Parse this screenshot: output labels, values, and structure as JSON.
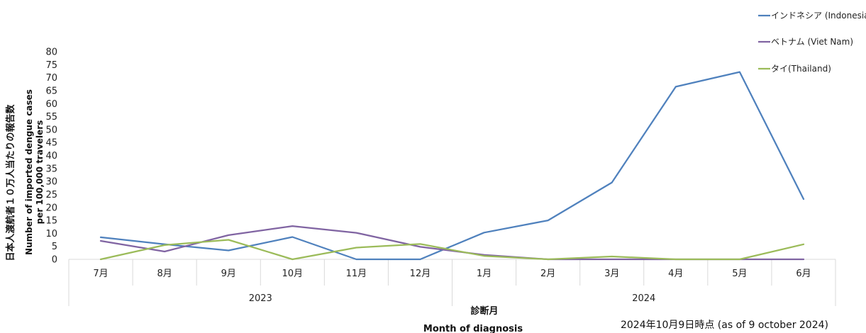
{
  "chart_data": {
    "type": "line",
    "categories": [
      "7月",
      "8月",
      "9月",
      "10月",
      "11月",
      "12月",
      "1月",
      "2月",
      "3月",
      "4月",
      "5月",
      "6月"
    ],
    "year_groups": [
      {
        "label": "2023",
        "span": 6
      },
      {
        "label": "2024",
        "span": 6
      }
    ],
    "series": [
      {
        "name": "インドネシア (Indonesia)",
        "color": "#4F81BD",
        "values": [
          8.5,
          5.8,
          3.4,
          8.6,
          0,
          0,
          10.3,
          15.0,
          29.6,
          66.5,
          72.2,
          23.2
        ]
      },
      {
        "name": "ベトナム (Viet Nam)",
        "color": "#8064A2",
        "values": [
          7.1,
          3.0,
          9.3,
          12.8,
          10.2,
          4.8,
          1.7,
          0,
          0,
          0,
          0,
          0
        ]
      },
      {
        "name": "タイ(Thailand)",
        "color": "#9BBB59",
        "values": [
          0,
          5.5,
          7.5,
          0,
          4.5,
          5.9,
          1.3,
          0,
          1.1,
          0,
          0,
          5.8
        ]
      }
    ],
    "ylim": [
      0,
      80
    ],
    "yticks": [
      0,
      5,
      10,
      15,
      20,
      25,
      30,
      35,
      40,
      45,
      50,
      55,
      60,
      65,
      70,
      75,
      80
    ],
    "xlabel_ja": "診断月",
    "xlabel_en": "Month of diagnosis",
    "ylabel_ja": "日本人渡航者１０万人当たりの報告数",
    "ylabel_en_line1": "Number of imported dengue cases",
    "ylabel_en_line2": "per 100,000 travelers",
    "note": "2024年10月9日時点 (as of 9 october 2024)",
    "grid": false,
    "legend_position": "top-right"
  }
}
